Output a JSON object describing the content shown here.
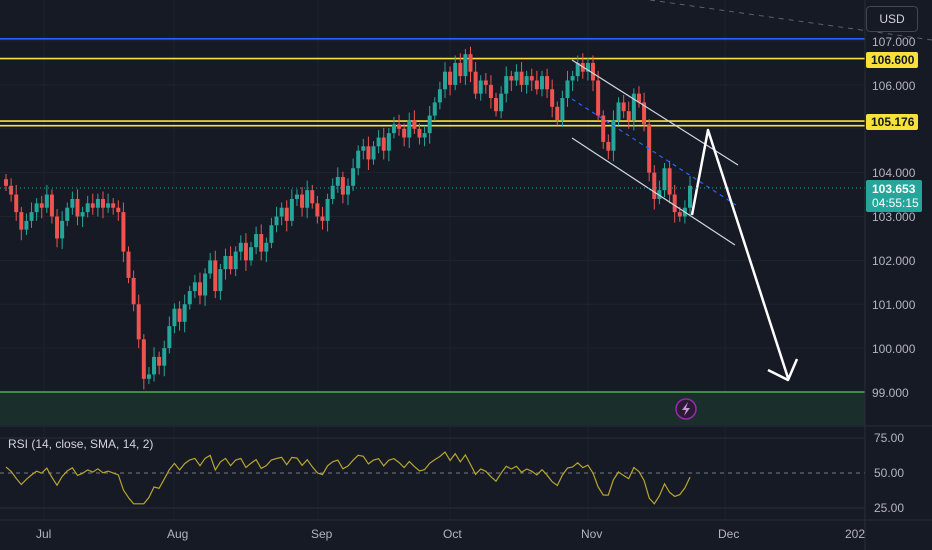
{
  "currency_button": "USD",
  "price_scale": {
    "ticks": [
      "107.000",
      "106.000",
      "104.000",
      "103.000",
      "102.000",
      "101.000",
      "100.000",
      "99.000"
    ]
  },
  "price_labels": {
    "resistance_high": "106.600",
    "resistance_mid": "105.176",
    "current_price": "103.653",
    "countdown": "04:55:15"
  },
  "rsi": {
    "label": "RSI (14, close, SMA, 14, 2)",
    "ticks": [
      "75.00",
      "50.00",
      "25.00"
    ]
  },
  "time_axis": [
    "Jul",
    "Aug",
    "Sep",
    "Oct",
    "Nov",
    "Dec",
    "202"
  ],
  "colors": {
    "background": "#161a25",
    "blue_line": "#2962ff",
    "yellow_line": "#f7e13a",
    "green_line": "#4caf50",
    "bull": "#26a69a",
    "bear": "#ef5350",
    "rsi_line": "#b8a52e",
    "current_tag": "#26a69a",
    "lightning_badge": "#9c27b0"
  },
  "chart_data": {
    "type": "candlestick",
    "x_range": [
      "2023-06-19",
      "2024-01-01"
    ],
    "y_range": [
      98.8,
      107.1
    ],
    "horizontal_levels": [
      {
        "value": 107.05,
        "color": "blue"
      },
      {
        "value": 106.6,
        "color": "yellow"
      },
      {
        "value": 105.176,
        "color": "yellow"
      },
      {
        "value": 105.07,
        "color": "yellow"
      },
      {
        "value": 99.0,
        "color": "green"
      }
    ],
    "current_price": 103.653,
    "candles_close": [
      103.7,
      103.5,
      103.1,
      102.7,
      102.9,
      103.1,
      103.3,
      103.2,
      103.5,
      103.0,
      102.5,
      102.9,
      103.2,
      103.4,
      103.0,
      103.1,
      103.3,
      103.2,
      103.4,
      103.2,
      103.3,
      103.2,
      103.1,
      102.2,
      101.6,
      101.0,
      100.2,
      99.3,
      99.4,
      99.8,
      99.6,
      100.0,
      100.5,
      100.9,
      100.6,
      101.0,
      101.3,
      101.5,
      101.2,
      101.7,
      102.0,
      101.3,
      101.8,
      102.1,
      101.8,
      102.2,
      102.4,
      102.0,
      102.3,
      102.6,
      102.2,
      102.4,
      102.8,
      103.0,
      103.2,
      102.9,
      103.4,
      103.5,
      103.2,
      103.6,
      103.3,
      103.0,
      102.9,
      103.4,
      103.7,
      103.9,
      103.5,
      103.7,
      104.1,
      104.5,
      104.6,
      104.3,
      104.6,
      104.8,
      104.5,
      104.9,
      105.1,
      105.0,
      104.8,
      105.2,
      105.0,
      104.8,
      104.9,
      105.3,
      105.6,
      105.9,
      106.3,
      106.0,
      106.5,
      106.2,
      106.7,
      106.3,
      105.8,
      106.1,
      106.0,
      105.7,
      105.4,
      105.8,
      106.2,
      106.1,
      106.3,
      106.0,
      106.2,
      106.1,
      105.9,
      106.2,
      105.9,
      105.5,
      105.2,
      105.7,
      106.1,
      106.2,
      106.5,
      106.3,
      106.5,
      106.1,
      105.3,
      104.7,
      104.5,
      105.2,
      105.6,
      105.4,
      105.2,
      105.8,
      105.6,
      105.1,
      104.0,
      103.4,
      103.6,
      104.1,
      103.5,
      103.1,
      103.0,
      103.2,
      103.7
    ],
    "rsi_sma_range": [
      25,
      75
    ],
    "annotations": [
      "descending channel",
      "projection arrow up to 105.176",
      "projection arrow down to 99.000"
    ]
  }
}
